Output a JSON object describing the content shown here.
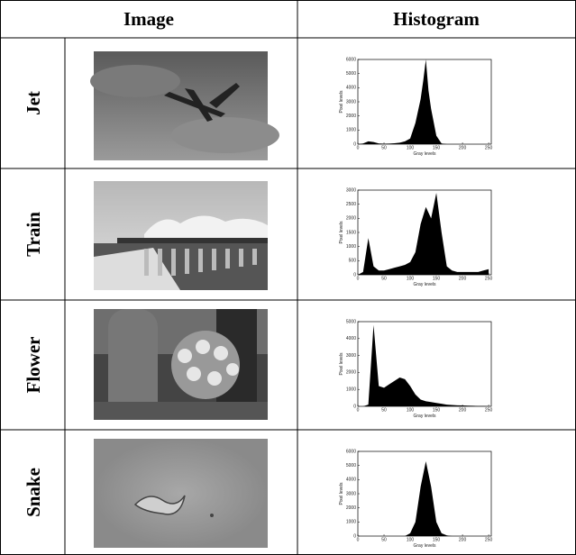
{
  "table": {
    "headers": [
      "Image",
      "Histogram"
    ],
    "rows": [
      {
        "label": "Jet",
        "histogram": {
          "type": "area",
          "xlabel": "Gray levels",
          "ylabel": "Pixel levels",
          "xlim": [
            0,
            255
          ],
          "ylim": [
            0,
            6000
          ],
          "xticks": [
            0,
            50,
            100,
            150,
            200,
            250
          ],
          "yticks": [
            0,
            1000,
            2000,
            3000,
            4000,
            5000,
            6000
          ],
          "color": "#000000",
          "x": [
            0,
            10,
            20,
            30,
            40,
            50,
            60,
            70,
            80,
            90,
            100,
            110,
            120,
            125,
            130,
            135,
            140,
            150,
            160,
            170,
            180,
            190,
            200,
            210,
            220,
            230,
            240,
            250
          ],
          "values": [
            0,
            50,
            200,
            150,
            50,
            30,
            40,
            60,
            100,
            200,
            400,
            1500,
            3200,
            4500,
            6000,
            3800,
            2500,
            600,
            50,
            0,
            0,
            0,
            0,
            0,
            0,
            0,
            0,
            0
          ]
        }
      },
      {
        "label": "Train",
        "histogram": {
          "type": "area",
          "xlabel": "Gray levels",
          "ylabel": "Pixel levels",
          "xlim": [
            0,
            255
          ],
          "ylim": [
            0,
            3000
          ],
          "xticks": [
            0,
            50,
            100,
            150,
            200,
            250
          ],
          "yticks": [
            0,
            500,
            1000,
            1500,
            2000,
            2500,
            3000
          ],
          "color": "#000000",
          "x": [
            0,
            10,
            20,
            30,
            40,
            50,
            60,
            70,
            80,
            90,
            100,
            110,
            120,
            130,
            140,
            150,
            160,
            170,
            180,
            190,
            200,
            210,
            220,
            230,
            240,
            250
          ],
          "values": [
            0,
            100,
            1300,
            300,
            150,
            150,
            200,
            250,
            300,
            350,
            450,
            800,
            1800,
            2400,
            2000,
            2900,
            1500,
            300,
            150,
            100,
            100,
            100,
            100,
            100,
            150,
            200
          ]
        }
      },
      {
        "label": "Flower",
        "histogram": {
          "type": "area",
          "xlabel": "Gray levels",
          "ylabel": "Pixel levels",
          "xlim": [
            0,
            255
          ],
          "ylim": [
            0,
            5000
          ],
          "xticks": [
            0,
            50,
            100,
            150,
            200,
            250
          ],
          "yticks": [
            0,
            1000,
            2000,
            3000,
            4000,
            5000
          ],
          "color": "#000000",
          "x": [
            0,
            10,
            20,
            30,
            40,
            50,
            60,
            70,
            80,
            90,
            100,
            110,
            120,
            130,
            140,
            150,
            160,
            170,
            180,
            190,
            200,
            210,
            220,
            230,
            240,
            250
          ],
          "values": [
            0,
            0,
            100,
            4800,
            1200,
            1100,
            1300,
            1500,
            1700,
            1600,
            1200,
            700,
            400,
            300,
            250,
            200,
            150,
            100,
            80,
            60,
            50,
            40,
            30,
            20,
            20,
            10
          ]
        }
      },
      {
        "label": "Snake",
        "histogram": {
          "type": "area",
          "xlabel": "Gray levels",
          "ylabel": "Pixel levels",
          "xlim": [
            0,
            255
          ],
          "ylim": [
            0,
            6000
          ],
          "xticks": [
            0,
            50,
            100,
            150,
            200,
            250
          ],
          "yticks": [
            0,
            1000,
            2000,
            3000,
            4000,
            5000,
            6000
          ],
          "color": "#000000",
          "x": [
            0,
            10,
            20,
            30,
            40,
            50,
            60,
            70,
            80,
            90,
            100,
            110,
            120,
            130,
            140,
            150,
            160,
            170,
            180,
            190,
            200,
            210,
            220,
            230,
            240,
            250
          ],
          "values": [
            0,
            0,
            0,
            0,
            0,
            0,
            0,
            0,
            0,
            0,
            200,
            1000,
            3500,
            5300,
            3500,
            1000,
            200,
            50,
            0,
            0,
            0,
            0,
            0,
            0,
            0,
            0
          ]
        }
      }
    ]
  }
}
